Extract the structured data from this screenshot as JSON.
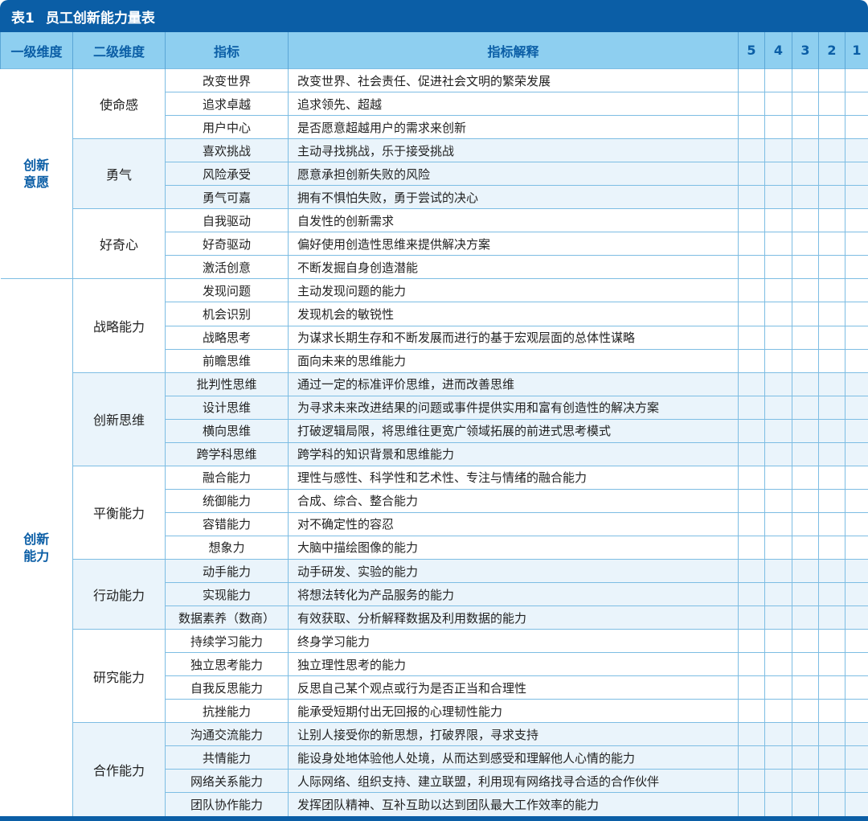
{
  "title": {
    "number": "表1",
    "text": "员工创新能力量表"
  },
  "header": [
    "一级维度",
    "二级维度",
    "指标",
    "指标解释",
    "5",
    "4",
    "3",
    "2",
    "1"
  ],
  "colors": {
    "title_bar": "#0b5ea6",
    "header_bg": "#8ecff0",
    "header_text": "#0b5ea6",
    "shade": "#eaf4fb"
  },
  "level1": [
    {
      "label": "创新意愿",
      "groups": [
        {
          "label": "使命感",
          "shaded": false,
          "items": [
            [
              "改变世界",
              "改变世界、社会责任、促进社会文明的繁荣发展"
            ],
            [
              "追求卓越",
              "追求领先、超越"
            ],
            [
              "用户中心",
              "是否愿意超越用户的需求来创新"
            ]
          ]
        },
        {
          "label": "勇气",
          "shaded": true,
          "items": [
            [
              "喜欢挑战",
              "主动寻找挑战，乐于接受挑战"
            ],
            [
              "风险承受",
              "愿意承担创新失败的风险"
            ],
            [
              "勇气可嘉",
              "拥有不惧怕失败，勇于尝试的决心"
            ]
          ]
        },
        {
          "label": "好奇心",
          "shaded": false,
          "items": [
            [
              "自我驱动",
              "自发性的创新需求"
            ],
            [
              "好奇驱动",
              "偏好使用创造性思维来提供解决方案"
            ],
            [
              "激活创意",
              "不断发掘自身创造潜能"
            ]
          ]
        }
      ]
    },
    {
      "label": "创新能力",
      "groups": [
        {
          "label": "战略能力",
          "shaded": false,
          "items": [
            [
              "发现问题",
              "主动发现问题的能力"
            ],
            [
              "机会识别",
              "发现机会的敏锐性"
            ],
            [
              "战略思考",
              "为谋求长期生存和不断发展而进行的基于宏观层面的总体性谋略"
            ],
            [
              "前瞻思维",
              "面向未来的思维能力"
            ]
          ]
        },
        {
          "label": "创新思维",
          "shaded": true,
          "items": [
            [
              "批判性思维",
              "通过一定的标准评价思维，进而改善思维"
            ],
            [
              "设计思维",
              "为寻求未来改进结果的问题或事件提供实用和富有创造性的解决方案"
            ],
            [
              "横向思维",
              "打破逻辑局限，将思维往更宽广领域拓展的前进式思考模式"
            ],
            [
              "跨学科思维",
              "跨学科的知识背景和思维能力"
            ]
          ]
        },
        {
          "label": "平衡能力",
          "shaded": false,
          "items": [
            [
              "融合能力",
              "理性与感性、科学性和艺术性、专注与情绪的融合能力"
            ],
            [
              "统御能力",
              "合成、综合、整合能力"
            ],
            [
              "容错能力",
              "对不确定性的容忍"
            ],
            [
              "想象力",
              "大脑中描绘图像的能力"
            ]
          ]
        },
        {
          "label": "行动能力",
          "shaded": true,
          "items": [
            [
              "动手能力",
              "动手研发、实验的能力"
            ],
            [
              "实现能力",
              "将想法转化为产品服务的能力"
            ],
            [
              "数据素养（数商）",
              "有效获取、分析解释数据及利用数据的能力"
            ]
          ]
        },
        {
          "label": "研究能力",
          "shaded": false,
          "items": [
            [
              "持续学习能力",
              "终身学习能力"
            ],
            [
              "独立思考能力",
              "独立理性思考的能力"
            ],
            [
              "自我反思能力",
              "反思自己某个观点或行为是否正当和合理性"
            ],
            [
              "抗挫能力",
              "能承受短期付出无回报的心理韧性能力"
            ]
          ]
        },
        {
          "label": "合作能力",
          "shaded": true,
          "items": [
            [
              "沟通交流能力",
              "让别人接受你的新思想，打破界限，寻求支持"
            ],
            [
              "共情能力",
              "能设身处地体验他人处境，从而达到感受和理解他人心情的能力"
            ],
            [
              "网络关系能力",
              "人际网络、组织支持、建立联盟，利用现有网络找寻合适的合作伙伴"
            ],
            [
              "团队协作能力",
              "发挥团队精神、互补互助以达到团队最大工作效率的能力"
            ]
          ]
        }
      ]
    }
  ]
}
